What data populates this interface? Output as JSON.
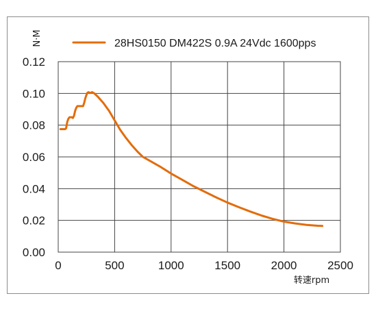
{
  "chart_data": {
    "type": "line",
    "title": "",
    "xlabel": "转速rpm",
    "ylabel": "N·M",
    "xlim": [
      0,
      2500
    ],
    "ylim": [
      0,
      0.12
    ],
    "x_ticks": [
      0,
      500,
      1000,
      1500,
      2000,
      2500
    ],
    "y_ticks": [
      0,
      0.02,
      0.04,
      0.06,
      0.08,
      0.1,
      0.12
    ],
    "x_tick_labels": [
      "0",
      "500",
      "1000",
      "1500",
      "2000",
      "2500"
    ],
    "y_tick_labels": [
      "0.00",
      "0.02",
      "0.04",
      "0.06",
      "0.08",
      "0.10",
      "0.12"
    ],
    "grid": true,
    "legend_position": "top",
    "series": [
      {
        "name": "28HS0150 DM422S 0.9A 24Vdc 1600pps",
        "color": "#e36c0a",
        "x": [
          20,
          40,
          60,
          70,
          80,
          90,
          100,
          120,
          130,
          140,
          150,
          160,
          170,
          180,
          200,
          220,
          230,
          240,
          250,
          260,
          270,
          280,
          290,
          300,
          320,
          350,
          400,
          450,
          500,
          550,
          600,
          650,
          700,
          750,
          800,
          900,
          1000,
          1100,
          1200,
          1300,
          1400,
          1500,
          1600,
          1700,
          1800,
          1900,
          2000,
          2100,
          2200,
          2300,
          2340
        ],
        "y": [
          0.0775,
          0.0775,
          0.0775,
          0.078,
          0.082,
          0.084,
          0.085,
          0.085,
          0.0845,
          0.086,
          0.089,
          0.091,
          0.092,
          0.092,
          0.092,
          0.092,
          0.094,
          0.097,
          0.099,
          0.1005,
          0.1008,
          0.1002,
          0.1005,
          0.1008,
          0.1,
          0.098,
          0.094,
          0.089,
          0.083,
          0.077,
          0.072,
          0.0675,
          0.0635,
          0.06,
          0.058,
          0.054,
          0.0495,
          0.0455,
          0.0415,
          0.038,
          0.0345,
          0.0312,
          0.0283,
          0.0256,
          0.0231,
          0.021,
          0.0192,
          0.0181,
          0.0172,
          0.0166,
          0.0165
        ]
      }
    ]
  }
}
